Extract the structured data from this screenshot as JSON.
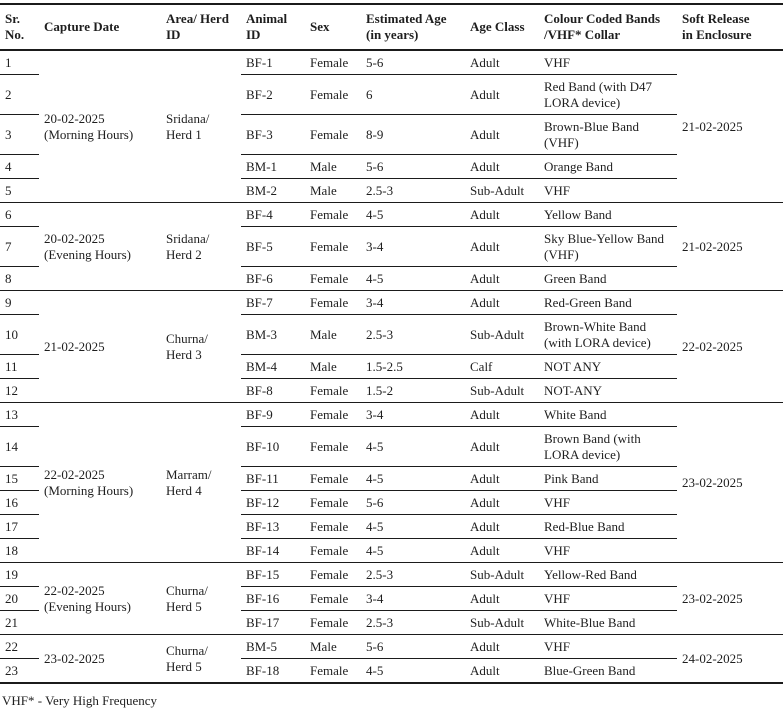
{
  "table": {
    "headers": [
      "Sr.\nNo.",
      "Capture Date",
      "Area/ Herd\nID",
      "Animal\nID",
      "Sex",
      "Estimated Age\n(in years)",
      "Age Class",
      "Colour Coded Bands\n/VHF* Collar",
      "Soft Release\nin Enclosure"
    ],
    "groups": [
      {
        "capture_date": "20-02-2025\n(Morning Hours)",
        "area_herd": "Sridana/\nHerd 1",
        "soft_release": "21-02-2025",
        "rows": [
          {
            "sr": "1",
            "animal_id": "BF-1",
            "sex": "Female",
            "age": "5-6",
            "age_class": "Adult",
            "band": "VHF"
          },
          {
            "sr": "2",
            "animal_id": "BF-2",
            "sex": "Female",
            "age": "6",
            "age_class": "Adult",
            "band": "Red Band (with D47\nLORA device)"
          },
          {
            "sr": "3",
            "animal_id": "BF-3",
            "sex": "Female",
            "age": "8-9",
            "age_class": "Adult",
            "band": "Brown-Blue Band\n(VHF)"
          },
          {
            "sr": "4",
            "animal_id": "BM-1",
            "sex": "Male",
            "age": "5-6",
            "age_class": "Adult",
            "band": "Orange Band"
          },
          {
            "sr": "5",
            "animal_id": "BM-2",
            "sex": "Male",
            "age": "2.5-3",
            "age_class": "Sub-Adult",
            "band": "VHF"
          }
        ]
      },
      {
        "capture_date": "20-02-2025\n(Evening Hours)",
        "area_herd": "Sridana/\nHerd 2",
        "soft_release": "21-02-2025",
        "rows": [
          {
            "sr": "6",
            "animal_id": "BF-4",
            "sex": "Female",
            "age": "4-5",
            "age_class": "Adult",
            "band": "Yellow Band"
          },
          {
            "sr": "7",
            "animal_id": "BF-5",
            "sex": "Female",
            "age": "3-4",
            "age_class": "Adult",
            "band": "Sky Blue-Yellow Band\n(VHF)"
          },
          {
            "sr": "8",
            "animal_id": "BF-6",
            "sex": "Female",
            "age": "4-5",
            "age_class": "Adult",
            "band": "Green Band"
          }
        ]
      },
      {
        "capture_date": "21-02-2025",
        "area_herd": "Churna/\nHerd 3",
        "soft_release": "22-02-2025",
        "rows": [
          {
            "sr": "9",
            "animal_id": "BF-7",
            "sex": "Female",
            "age": "3-4",
            "age_class": "Adult",
            "band": "Red-Green Band"
          },
          {
            "sr": "10",
            "animal_id": "BM-3",
            "sex": "Male",
            "age": "2.5-3",
            "age_class": "Sub-Adult",
            "band": "Brown-White Band\n(with LORA device)"
          },
          {
            "sr": "11",
            "animal_id": "BM-4",
            "sex": "Male",
            "age": "1.5-2.5",
            "age_class": "Calf",
            "band": "NOT ANY"
          },
          {
            "sr": "12",
            "animal_id": "BF-8",
            "sex": "Female",
            "age": "1.5-2",
            "age_class": "Sub-Adult",
            "band": "NOT-ANY"
          }
        ]
      },
      {
        "capture_date": "22-02-2025\n(Morning Hours)",
        "area_herd": "Marram/\nHerd 4",
        "soft_release": "23-02-2025",
        "rows": [
          {
            "sr": "13",
            "animal_id": "BF-9",
            "sex": "Female",
            "age": "3-4",
            "age_class": "Adult",
            "band": "White Band"
          },
          {
            "sr": "14",
            "animal_id": "BF-10",
            "sex": "Female",
            "age": "4-5",
            "age_class": "Adult",
            "band": "Brown Band (with\nLORA device)"
          },
          {
            "sr": "15",
            "animal_id": "BF-11",
            "sex": "Female",
            "age": "4-5",
            "age_class": "Adult",
            "band": "Pink Band"
          },
          {
            "sr": "16",
            "animal_id": "BF-12",
            "sex": "Female",
            "age": "5-6",
            "age_class": "Adult",
            "band": "VHF"
          },
          {
            "sr": "17",
            "animal_id": "BF-13",
            "sex": "Female",
            "age": "4-5",
            "age_class": "Adult",
            "band": "Red-Blue Band"
          },
          {
            "sr": "18",
            "animal_id": "BF-14",
            "sex": "Female",
            "age": "4-5",
            "age_class": "Adult",
            "band": "VHF"
          }
        ]
      },
      {
        "capture_date": "22-02-2025\n(Evening Hours)",
        "area_herd": "Churna/\nHerd 5",
        "soft_release": "23-02-2025",
        "rows": [
          {
            "sr": "19",
            "animal_id": "BF-15",
            "sex": "Female",
            "age": "2.5-3",
            "age_class": "Sub-Adult",
            "band": "Yellow-Red Band"
          },
          {
            "sr": "20",
            "animal_id": "BF-16",
            "sex": "Female",
            "age": "3-4",
            "age_class": "Adult",
            "band": "VHF"
          },
          {
            "sr": "21",
            "animal_id": "BF-17",
            "sex": "Female",
            "age": "2.5-3",
            "age_class": "Sub-Adult",
            "band": "White-Blue Band"
          }
        ]
      },
      {
        "capture_date": "23-02-2025",
        "area_herd": "Churna/\nHerd 5",
        "soft_release": "24-02-2025",
        "rows": [
          {
            "sr": "22",
            "animal_id": "BM-5",
            "sex": "Male",
            "age": "5-6",
            "age_class": "Adult",
            "band": "VHF"
          },
          {
            "sr": "23",
            "animal_id": "BF-18",
            "sex": "Female",
            "age": "4-5",
            "age_class": "Adult",
            "band": "Blue-Green Band"
          }
        ]
      }
    ]
  },
  "footnote": "VHF* - Very High Frequency"
}
